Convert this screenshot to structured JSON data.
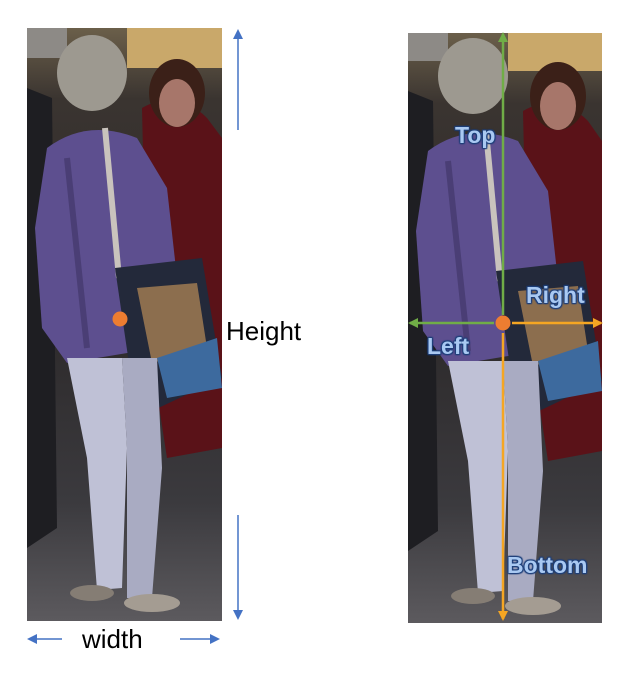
{
  "left_panel": {
    "height_label": "Height",
    "width_label": "width"
  },
  "right_panel": {
    "top_label": "Top",
    "left_label": "Left",
    "right_label": "Right",
    "bottom_label": "Bottom"
  },
  "colors": {
    "blue_arrow": "#4472c4",
    "green_arrow": "#70ad47",
    "orange_arrow": "#f5a623",
    "center_point": "#ed7d31",
    "label_text": "#a9c9f2"
  }
}
